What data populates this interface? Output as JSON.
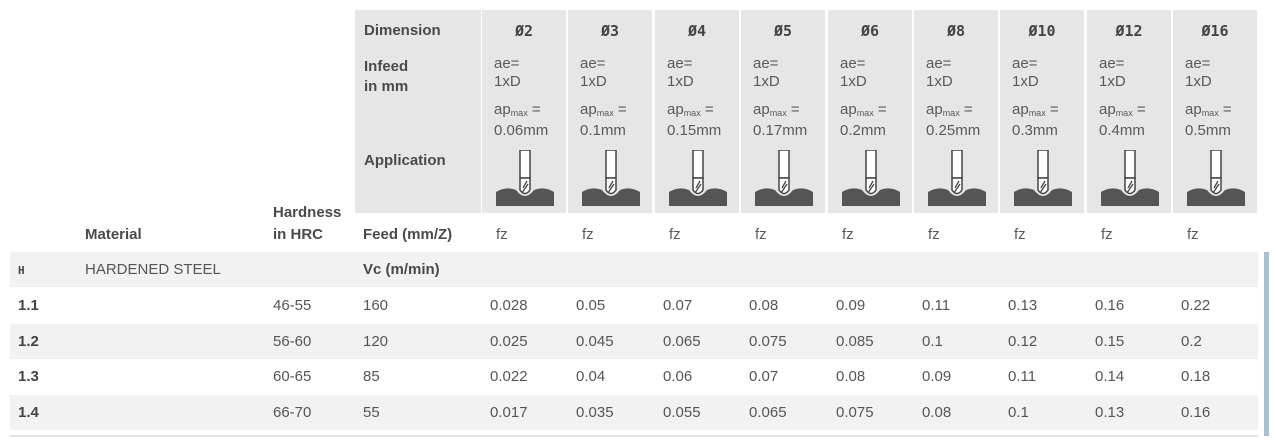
{
  "header": {
    "dimension_label": "Dimension",
    "infeed_label_1": "Infeed",
    "infeed_label_2": "in mm",
    "application_label": "Application",
    "material_label": "Material",
    "hardness_label_1": "Hardness",
    "hardness_label_2": "in HRC",
    "feed_label": "Feed (mm/Z)"
  },
  "columns": [
    {
      "dim": "Ø2",
      "ae1": "ae=",
      "ae2": "1xD",
      "ap": "ap",
      "sub": "max",
      "apeq": " =",
      "apval": "0.06mm",
      "fz": "fz"
    },
    {
      "dim": "Ø3",
      "ae1": "ae=",
      "ae2": "1xD",
      "ap": "ap",
      "sub": "max",
      "apeq": " =",
      "apval": "0.1mm",
      "fz": "fz"
    },
    {
      "dim": "Ø4",
      "ae1": "ae=",
      "ae2": "1xD",
      "ap": "ap",
      "sub": "max",
      "apeq": " =",
      "apval": "0.15mm",
      "fz": "fz"
    },
    {
      "dim": "Ø5",
      "ae1": "ae=",
      "ae2": "1xD",
      "ap": "ap",
      "sub": "max",
      "apeq": " =",
      "apval": "0.17mm",
      "fz": "fz"
    },
    {
      "dim": "Ø6",
      "ae1": "ae=",
      "ae2": "1xD",
      "ap": "ap",
      "sub": "max",
      "apeq": " =",
      "apval": "0.2mm",
      "fz": "fz"
    },
    {
      "dim": "Ø8",
      "ae1": "ae=",
      "ae2": "1xD",
      "ap": "ap",
      "sub": "max",
      "apeq": " =",
      "apval": "0.25mm",
      "fz": "fz"
    },
    {
      "dim": "Ø10",
      "ae1": "ae=",
      "ae2": "1xD",
      "ap": "ap",
      "sub": "max",
      "apeq": " =",
      "apval": "0.3mm",
      "fz": "fz"
    },
    {
      "dim": "Ø12",
      "ae1": "ae=",
      "ae2": "1xD",
      "ap": "ap",
      "sub": "max",
      "apeq": " =",
      "apval": "0.4mm",
      "fz": "fz"
    },
    {
      "dim": "Ø16",
      "ae1": "ae=",
      "ae2": "1xD",
      "ap": "ap",
      "sub": "max",
      "apeq": " =",
      "apval": "0.5mm",
      "fz": "fz"
    }
  ],
  "group": {
    "code": "H",
    "material": "HARDENED STEEL",
    "vc_label": "Vc (m/min)"
  },
  "rows": [
    {
      "id": "1.1",
      "hardness": "46-55",
      "vc": "160",
      "values": [
        "0.028",
        "0.05",
        "0.07",
        "0.08",
        "0.09",
        "0.11",
        "0.13",
        "0.16",
        "0.22"
      ]
    },
    {
      "id": "1.2",
      "hardness": "56-60",
      "vc": "120",
      "values": [
        "0.025",
        "0.045",
        "0.065",
        "0.075",
        "0.085",
        "0.1",
        "0.12",
        "0.15",
        "0.2"
      ]
    },
    {
      "id": "1.3",
      "hardness": "60-65",
      "vc": "85",
      "values": [
        "0.022",
        "0.04",
        "0.06",
        "0.07",
        "0.08",
        "0.09",
        "0.11",
        "0.14",
        "0.18"
      ]
    },
    {
      "id": "1.4",
      "hardness": "66-70",
      "vc": "55",
      "values": [
        "0.017",
        "0.035",
        "0.055",
        "0.065",
        "0.075",
        "0.08",
        "0.1",
        "0.13",
        "0.16"
      ]
    }
  ]
}
